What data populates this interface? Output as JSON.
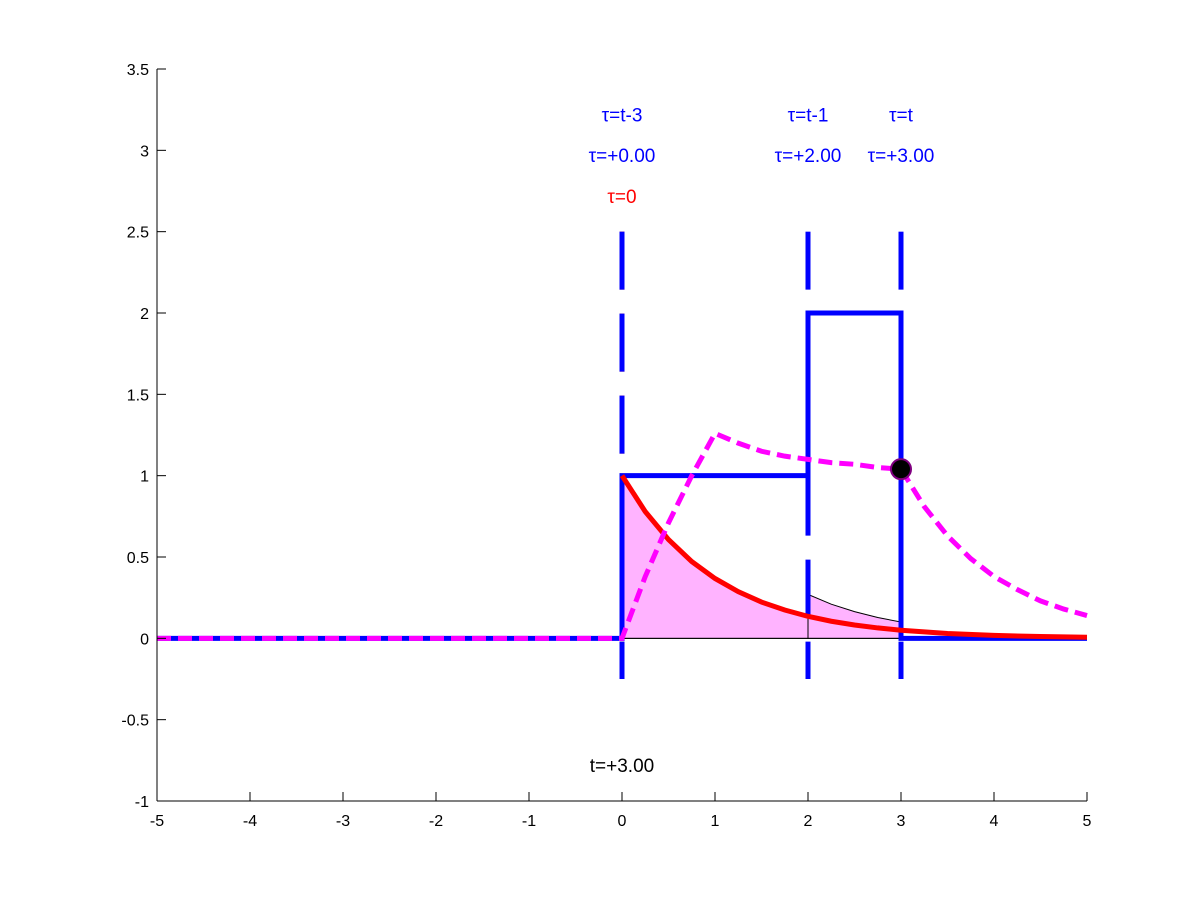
{
  "chart_data": {
    "type": "line",
    "title": "",
    "xlabel": "",
    "ylabel": "",
    "xlim": [
      -5,
      5
    ],
    "ylim": [
      -1,
      3.5
    ],
    "xticks": [
      -5,
      -4,
      -3,
      -2,
      -1,
      0,
      1,
      2,
      3,
      4,
      5
    ],
    "yticks": [
      -1,
      -0.5,
      0,
      0.5,
      1,
      1.5,
      2,
      2.5,
      3,
      3.5
    ],
    "xtick_labels": [
      "-5",
      "-4",
      "-3",
      "-2",
      "-1",
      "0",
      "1",
      "2",
      "3",
      "4",
      "5"
    ],
    "ytick_labels": [
      "-1",
      "-0.5",
      "0",
      "0.5",
      "1",
      "1.5",
      "2",
      "2.5",
      "3",
      "3.5"
    ],
    "grid": false,
    "colors": {
      "blue": "#0000ff",
      "red": "#ff0000",
      "magenta": "#ff00ff",
      "fill": "#ffb3ff",
      "black": "#000000"
    },
    "series": [
      {
        "style": "solid",
        "color": "#0000ff",
        "x": [
          -5,
          0,
          0,
          2,
          2,
          3,
          3,
          5
        ],
        "y": [
          0,
          0,
          1,
          1,
          2,
          2,
          0,
          0
        ]
      },
      {
        "style": "solid",
        "color": "#ff0000",
        "x": [
          0,
          0.25,
          0.5,
          0.75,
          1,
          1.25,
          1.5,
          1.75,
          2,
          2.25,
          2.5,
          2.75,
          3,
          3.5,
          4,
          4.5,
          5
        ],
        "y": [
          1.0,
          0.779,
          0.607,
          0.472,
          0.368,
          0.287,
          0.223,
          0.174,
          0.135,
          0.105,
          0.082,
          0.064,
          0.05,
          0.03,
          0.018,
          0.011,
          0.007
        ]
      },
      {
        "style": "dashed",
        "color": "#ff00ff",
        "x": [
          -5,
          0,
          0.25,
          0.5,
          0.75,
          1,
          1.25,
          1.5,
          1.75,
          2,
          2.25,
          2.5,
          2.75,
          3,
          3.25,
          3.5,
          3.75,
          4,
          4.25,
          4.5,
          4.75,
          5
        ],
        "y": [
          0,
          0,
          0.38,
          0.71,
          1.0,
          1.26,
          1.2,
          1.15,
          1.12,
          1.1,
          1.08,
          1.07,
          1.05,
          1.04,
          0.81,
          0.63,
          0.49,
          0.38,
          0.3,
          0.23,
          0.18,
          0.14
        ]
      }
    ],
    "shaded_areas": [
      {
        "color": "#ffb3ff",
        "x": [
          0,
          0.25,
          0.5,
          0.75,
          1,
          1.25,
          1.5,
          1.75,
          2
        ],
        "y": [
          1.0,
          0.779,
          0.607,
          0.472,
          0.368,
          0.287,
          0.223,
          0.174,
          0.135
        ]
      },
      {
        "color": "#ffb3ff",
        "x": [
          2,
          2.25,
          2.5,
          2.75,
          3
        ],
        "y": [
          0.27,
          0.21,
          0.164,
          0.128,
          0.1
        ]
      }
    ],
    "vertical_markers": [
      {
        "x": 0,
        "color": "#ff0000",
        "style": "dashed"
      },
      {
        "x": 0,
        "color": "#0000ff",
        "style": "dashed"
      },
      {
        "x": 2,
        "color": "#0000ff",
        "style": "dashed"
      },
      {
        "x": 3,
        "color": "#0000ff",
        "style": "dashed"
      }
    ],
    "point": {
      "x": 3,
      "y": 1.04,
      "color": "#000000",
      "edge": "#800080"
    },
    "annotations": [
      {
        "text": "τ=t-3",
        "x": 0,
        "y": 3.22,
        "color": "#0000ff"
      },
      {
        "text": "τ=+0.00",
        "x": 0,
        "y": 2.97,
        "color": "#0000ff"
      },
      {
        "text": "τ=0",
        "x": 0,
        "y": 2.72,
        "color": "#ff0000"
      },
      {
        "text": "τ=t-1",
        "x": 2,
        "y": 3.22,
        "color": "#0000ff"
      },
      {
        "text": "τ=+2.00",
        "x": 2,
        "y": 2.97,
        "color": "#0000ff"
      },
      {
        "text": "τ=t",
        "x": 3,
        "y": 3.22,
        "color": "#0000ff"
      },
      {
        "text": "τ=+3.00",
        "x": 3,
        "y": 2.97,
        "color": "#0000ff"
      },
      {
        "text": "t=+3.00",
        "x": 0,
        "y": -0.78,
        "color": "#000000"
      }
    ]
  }
}
